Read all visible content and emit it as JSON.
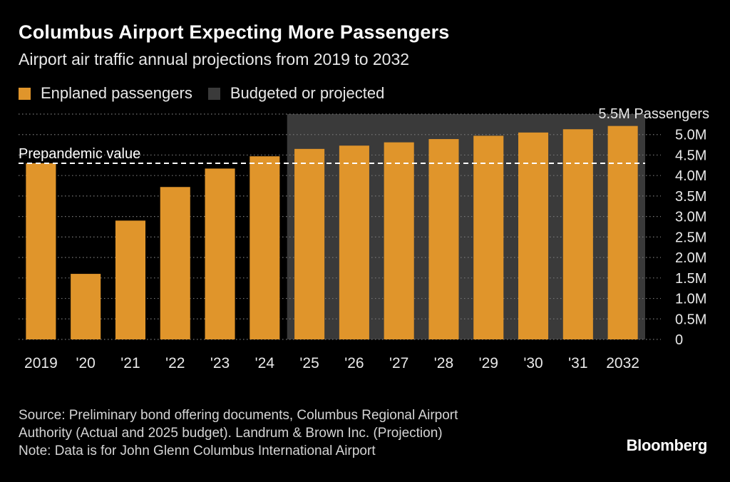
{
  "chart_data": {
    "type": "bar",
    "title": "Columbus Airport Expecting More Passengers",
    "subtitle": "Airport air traffic annual projections from 2019 to 2032",
    "categories": [
      "2019",
      "'20",
      "'21",
      "'22",
      "'23",
      "'24",
      "'25",
      "'26",
      "'27",
      "'28",
      "'29",
      "'30",
      "'31",
      "2032"
    ],
    "series": [
      {
        "name": "Enplaned passengers",
        "values": [
          4.3,
          1.6,
          2.9,
          3.72,
          4.17,
          4.47,
          4.65,
          4.73,
          4.81,
          4.89,
          4.97,
          5.05,
          5.13,
          5.21
        ]
      }
    ],
    "legend": [
      {
        "label": "Enplaned passengers",
        "color": "#e0952b"
      },
      {
        "label": "Budgeted or projected",
        "color": "#3a3a3a"
      }
    ],
    "projected_start_index": 6,
    "reference_line": {
      "label": "Prepandemic value",
      "value": 4.3
    },
    "annotation": {
      "label": "5.5M Passengers",
      "value": 5.5
    },
    "yticks": [
      0,
      0.5,
      1.0,
      1.5,
      2.0,
      2.5,
      3.0,
      3.5,
      4.0,
      4.5,
      5.0
    ],
    "yticklabels": [
      "0",
      "0.5M",
      "1.0M",
      "1.5M",
      "2.0M",
      "2.5M",
      "3.0M",
      "3.5M",
      "4.0M",
      "4.5M",
      "5.0M"
    ],
    "ylim": [
      0,
      5.5
    ],
    "y_axis_position": "right",
    "grid": true,
    "legend_position": "top-left",
    "colors": {
      "bar": "#e0952b",
      "shade": "#3a3a3a",
      "grid": "#777777",
      "ref": "#ffffff"
    }
  },
  "source": {
    "lines": [
      "Source: Preliminary bond offering documents, Columbus Regional Airport",
      "Authority (Actual and 2025 budget). Landrum & Brown Inc. (Projection)",
      "Note: Data is for John Glenn Columbus International Airport"
    ]
  },
  "brand": "Bloomberg"
}
